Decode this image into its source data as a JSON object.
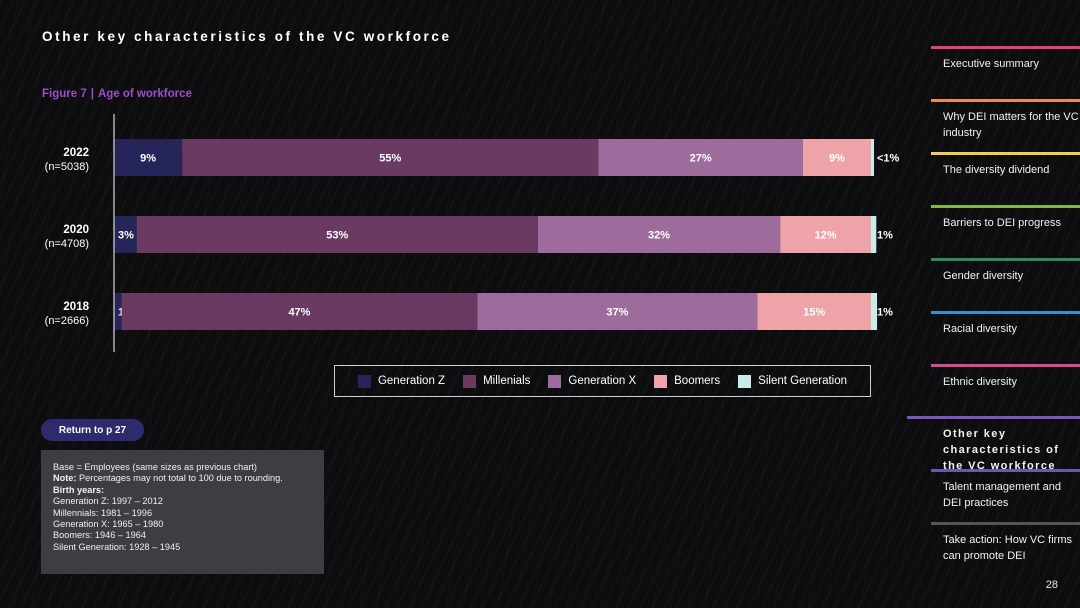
{
  "page": {
    "title": "Other key characteristics of the VC workforce",
    "page_number": "28"
  },
  "figure": {
    "number": "Figure 7",
    "separator": "|",
    "caption": "Age of workforce"
  },
  "chart_data": {
    "type": "bar",
    "orientation": "horizontal-stacked-100",
    "categories": [
      "2022",
      "2020",
      "2018"
    ],
    "category_sublabels": [
      "(n=5038)",
      "(n=4708)",
      "(n=2666)"
    ],
    "series": [
      {
        "name": "Generation Z",
        "values": [
          9,
          3,
          1
        ],
        "labels": [
          "9%",
          "3%",
          "1%"
        ],
        "color": "#262559"
      },
      {
        "name": "Millenials",
        "values": [
          55,
          53,
          47
        ],
        "labels": [
          "55%",
          "53%",
          "47%"
        ],
        "color": "#6b3a63"
      },
      {
        "name": "Generation X",
        "values": [
          27,
          32,
          37
        ],
        "labels": [
          "27%",
          "32%",
          "37%"
        ],
        "color": "#9e6b9d"
      },
      {
        "name": "Boomers",
        "values": [
          9,
          12,
          15
        ],
        "labels": [
          "9%",
          "12%",
          "15%"
        ],
        "color": "#eea3a8"
      },
      {
        "name": "Silent Generation",
        "values": [
          0.4,
          0.7,
          0.8
        ],
        "labels": [
          "<1%",
          "1%",
          "1%"
        ],
        "color": "#c9ecea"
      }
    ],
    "xlim": [
      0,
      100
    ],
    "legend_position": "bottom",
    "grid": false
  },
  "return_button": {
    "label": "Return to p 27"
  },
  "notes": {
    "base": "Base = Employees (same sizes as previous chart)",
    "note_label": "Note:",
    "note_text": " Percentages may not total to 100 due to rounding.",
    "birth_years_label": "Birth years:",
    "birth_years": [
      "Generation Z: 1997 – 2012",
      "Millennials: 1981 – 1996",
      "Generation X: 1965 – 1980",
      "Boomers: 1946 – 1964",
      "Silent Generation: 1928 – 1945"
    ]
  },
  "nav": [
    {
      "label": "Executive summary",
      "color": "#e83e78",
      "active": false
    },
    {
      "label": "Why DEI matters for the VC industry",
      "color": "#f08a4b",
      "active": false
    },
    {
      "label": "The diversity dividend",
      "color": "#f2cf5b",
      "active": false
    },
    {
      "label": "Barriers to DEI progress",
      "color": "#7dbb42",
      "active": false
    },
    {
      "label": "Gender diversity",
      "color": "#2f8a5a",
      "active": false
    },
    {
      "label": "Racial diversity",
      "color": "#2f93d6",
      "active": false
    },
    {
      "label": "Ethnic diversity",
      "color": "#d44c8c",
      "active": false
    },
    {
      "label": "Other key characteristics of the VC workforce",
      "color": "#7b55c4",
      "active": true
    },
    {
      "label": "Talent management and DEI practices",
      "color": "#5f5fae",
      "active": false
    },
    {
      "label": "Take action: How VC firms can promote DEI",
      "color": "#555555",
      "active": false
    }
  ]
}
